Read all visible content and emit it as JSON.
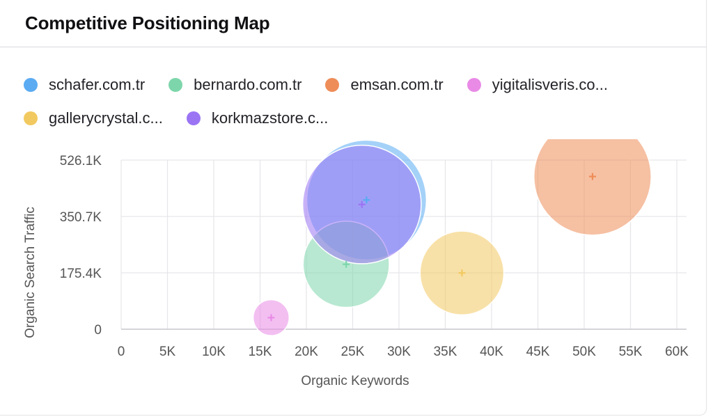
{
  "card": {
    "title": "Competitive Positioning Map"
  },
  "chart_data": {
    "type": "scatter",
    "subtype": "bubble",
    "title": "Competitive Positioning Map",
    "xlabel": "Organic Keywords",
    "ylabel": "Organic Search Traffic",
    "xlim": [
      0,
      60000
    ],
    "ylim": [
      0,
      526100
    ],
    "x_ticks": [
      {
        "value": 0,
        "label": "0"
      },
      {
        "value": 5000,
        "label": "5K"
      },
      {
        "value": 10000,
        "label": "10K"
      },
      {
        "value": 15000,
        "label": "15K"
      },
      {
        "value": 20000,
        "label": "20K"
      },
      {
        "value": 25000,
        "label": "25K"
      },
      {
        "value": 30000,
        "label": "30K"
      },
      {
        "value": 35000,
        "label": "35K"
      },
      {
        "value": 40000,
        "label": "40K"
      },
      {
        "value": 45000,
        "label": "45K"
      },
      {
        "value": 50000,
        "label": "50K"
      },
      {
        "value": 55000,
        "label": "55K"
      },
      {
        "value": 60000,
        "label": "60K"
      }
    ],
    "y_ticks": [
      {
        "value": 0,
        "label": "0"
      },
      {
        "value": 175400,
        "label": "175.4K"
      },
      {
        "value": 350700,
        "label": "350.7K"
      },
      {
        "value": 526100,
        "label": "526.1K"
      }
    ],
    "grid": true,
    "legend_position": "top",
    "series": [
      {
        "name": "schafer.com.tr",
        "color": "#5aabf2",
        "x": 26500,
        "y": 402000,
        "size": 1.0
      },
      {
        "name": "bernardo.com.tr",
        "color": "#7dd6ab",
        "x": 24300,
        "y": 202000,
        "size": 0.72
      },
      {
        "name": "emsan.com.tr",
        "color": "#ee8d58",
        "x": 50900,
        "y": 475000,
        "size": 0.98
      },
      {
        "name": "yigitalisveris.co...",
        "color": "#e98ae6",
        "x": 16200,
        "y": 36000,
        "size": 0.3
      },
      {
        "name": "gallerycrystal.c...",
        "color": "#f2c960",
        "x": 36800,
        "y": 175000,
        "size": 0.7
      },
      {
        "name": "korkmazstore.c...",
        "color": "#9b74f4",
        "x": 26000,
        "y": 388000,
        "size": 0.99
      }
    ]
  }
}
